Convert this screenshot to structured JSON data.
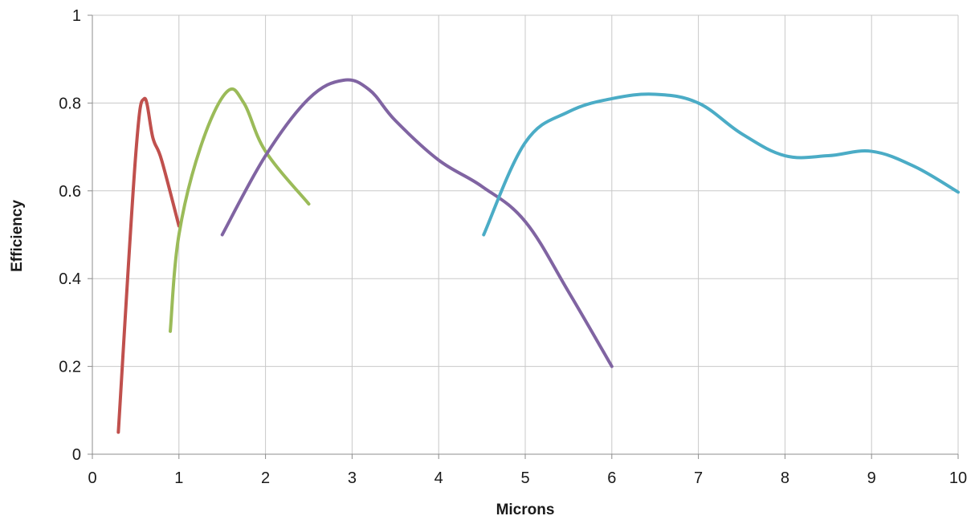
{
  "chart_data": {
    "type": "line",
    "title": "",
    "xlabel": "Microns",
    "ylabel": "Efficiency",
    "xlim": [
      0,
      10
    ],
    "ylim": [
      0,
      1
    ],
    "grid": true,
    "legend": "none",
    "x_ticks": [
      "0",
      "1",
      "2",
      "3",
      "4",
      "5",
      "6",
      "7",
      "8",
      "9",
      "10"
    ],
    "y_ticks": [
      "0",
      "0.2",
      "0.4",
      "0.6",
      "0.8",
      "1"
    ],
    "series": [
      {
        "color": "#c0504d",
        "x": [
          0.3,
          0.5,
          0.6,
          0.7,
          0.8,
          1.0
        ],
        "y": [
          0.05,
          0.68,
          0.81,
          0.72,
          0.67,
          0.52
        ]
      },
      {
        "color": "#9bbb59",
        "x": [
          0.9,
          1.0,
          1.25,
          1.55,
          1.75,
          2.0,
          2.5
        ],
        "y": [
          0.28,
          0.5,
          0.7,
          0.825,
          0.8,
          0.69,
          0.57
        ]
      },
      {
        "color": "#8064a2",
        "x": [
          1.5,
          2.0,
          2.5,
          2.9,
          3.2,
          3.5,
          4.0,
          4.5,
          5.0,
          5.5,
          6.0
        ],
        "y": [
          0.5,
          0.68,
          0.81,
          0.852,
          0.83,
          0.76,
          0.67,
          0.61,
          0.53,
          0.37,
          0.2
        ]
      },
      {
        "color": "#4bacc6",
        "x": [
          4.52,
          5.0,
          5.5,
          6.0,
          6.5,
          7.0,
          7.5,
          8.0,
          8.5,
          9.0,
          9.5,
          10.0
        ],
        "y": [
          0.5,
          0.71,
          0.78,
          0.81,
          0.82,
          0.8,
          0.73,
          0.68,
          0.68,
          0.69,
          0.655,
          0.597
        ]
      }
    ]
  }
}
